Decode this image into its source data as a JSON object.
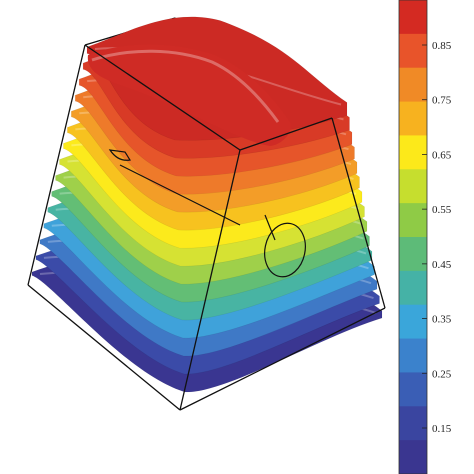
{
  "colorbar": {
    "colors": [
      "#D42A22",
      "#E8542A",
      "#F08A26",
      "#F7B21F",
      "#FCE91A",
      "#C6DE2E",
      "#8FCB46",
      "#5DBB78",
      "#45B2A6",
      "#3AA6DA",
      "#3B82CC",
      "#3A5EB5",
      "#3A45A0",
      "#3A3690"
    ],
    "ticks": [
      "0.85",
      "0.75",
      "0.65",
      "0.55",
      "0.45",
      "0.35",
      "0.25",
      "0.15"
    ]
  },
  "surfaces": {
    "layer_colors": [
      "#3A3691",
      "#3B4BA8",
      "#3F79C6",
      "#3FA2DA",
      "#48B4A3",
      "#63BE75",
      "#9FD04A",
      "#D6E233",
      "#FCEA1C",
      "#F7C21F",
      "#F39D28",
      "#EE7A2A",
      "#E6552A",
      "#D83A26",
      "#CC2A24"
    ]
  }
}
